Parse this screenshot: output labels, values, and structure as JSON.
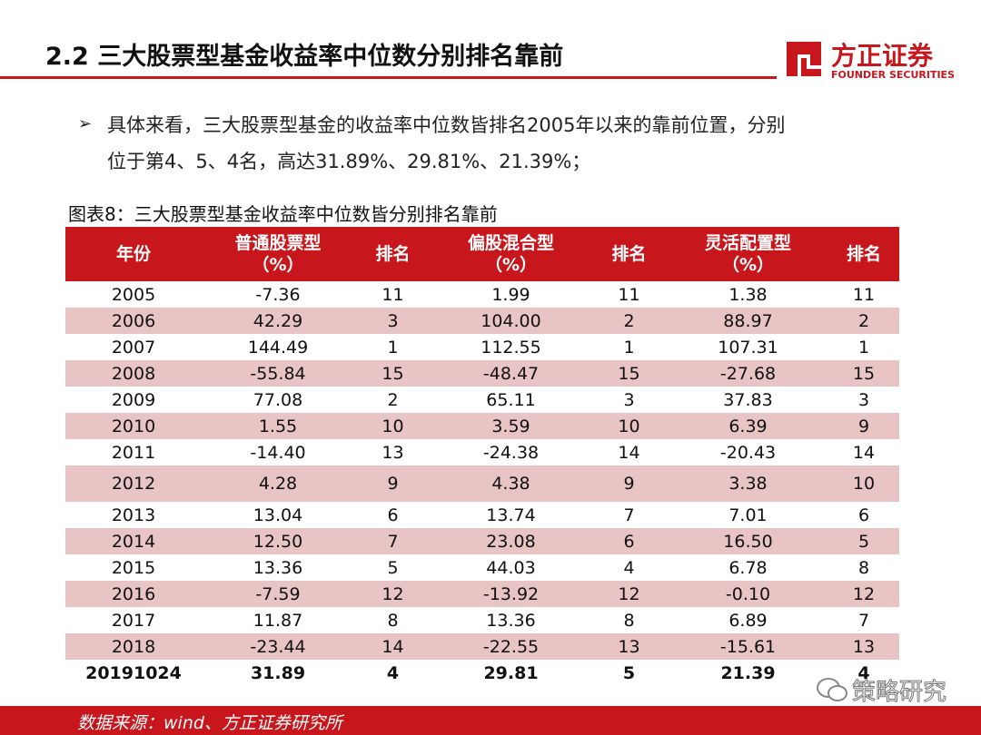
{
  "header": {
    "title": "2.2 三大股票型基金收益率中位数分别排名靠前",
    "logo_name": "方正证券",
    "logo_sub": "FOUNDER SECURITIES"
  },
  "bullet": {
    "lines": [
      "具体来看，三大股票型基金的收益率中位数皆排名2005年以来的靠前位置，分别",
      "位于第4、5、4名，高达31.89%、29.81%、21.39%；"
    ]
  },
  "caption": "图表8：三大股票型基金收益率中位数皆分别排名靠前",
  "table": {
    "header": [
      [
        "年份"
      ],
      [
        "普通股票型",
        "（%）"
      ],
      [
        "排名"
      ],
      [
        "偏股混合型",
        "（%）"
      ],
      [
        "排名"
      ],
      [
        "灵活配置型",
        "（%）"
      ],
      [
        "排名"
      ]
    ],
    "rows": [
      [
        "2005",
        "-7.36",
        "11",
        "1.99",
        "11",
        "1.38",
        "11"
      ],
      [
        "2006",
        "42.29",
        "3",
        "104.00",
        "2",
        "88.97",
        "2"
      ],
      [
        "2007",
        "144.49",
        "1",
        "112.55",
        "1",
        "107.31",
        "1"
      ],
      [
        "2008",
        "-55.84",
        "15",
        "-48.47",
        "15",
        "-27.68",
        "15"
      ],
      [
        "2009",
        "77.08",
        "2",
        "65.11",
        "3",
        "37.83",
        "3"
      ],
      [
        "2010",
        "1.55",
        "10",
        "3.59",
        "10",
        "6.39",
        "9"
      ],
      [
        "2011",
        "-14.40",
        "13",
        "-24.38",
        "14",
        "-20.43",
        "14"
      ],
      [
        "2012",
        "4.28",
        "9",
        "4.38",
        "9",
        "3.38",
        "10"
      ],
      [
        "2013",
        "13.04",
        "6",
        "13.74",
        "7",
        "7.01",
        "6"
      ],
      [
        "2014",
        "12.50",
        "7",
        "23.08",
        "6",
        "16.50",
        "5"
      ],
      [
        "2015",
        "13.36",
        "5",
        "44.03",
        "4",
        "6.78",
        "8"
      ],
      [
        "2016",
        "-7.59",
        "12",
        "-13.92",
        "12",
        "-0.10",
        "12"
      ],
      [
        "2017",
        "11.87",
        "8",
        "13.36",
        "8",
        "6.89",
        "7"
      ],
      [
        "2018",
        "-23.44",
        "14",
        "-22.55",
        "13",
        "-15.61",
        "13"
      ],
      [
        "20191024",
        "31.89",
        "4",
        "29.81",
        "5",
        "21.39",
        "4"
      ]
    ]
  },
  "source": "数据来源：wind、方正证券研究所",
  "watermark": "策略研究"
}
